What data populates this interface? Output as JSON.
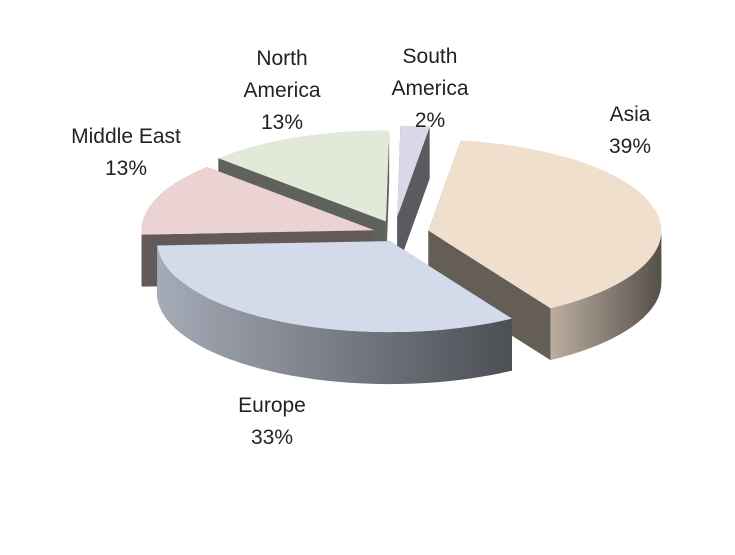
{
  "chart_data": {
    "type": "pie",
    "style": "3d-exploded",
    "legend": "none",
    "categories": [
      "Asia",
      "Europe",
      "Middle East",
      "North America",
      "South America"
    ],
    "values": [
      39,
      33,
      13,
      13,
      2
    ],
    "value_labels": [
      "39%",
      "33%",
      "13%",
      "13%",
      "2%"
    ],
    "label_lines": [
      [
        "Asia",
        "39%"
      ],
      [
        "Europe",
        "33%"
      ],
      [
        "Middle East",
        "13%"
      ],
      [
        "North",
        "America",
        "13%"
      ],
      [
        "South",
        "America",
        "2%"
      ]
    ],
    "colors": [
      "#f0dfcd",
      "#d3dbea",
      "#ead3d2",
      "#e2e9d8",
      "#dcd7e6"
    ]
  }
}
